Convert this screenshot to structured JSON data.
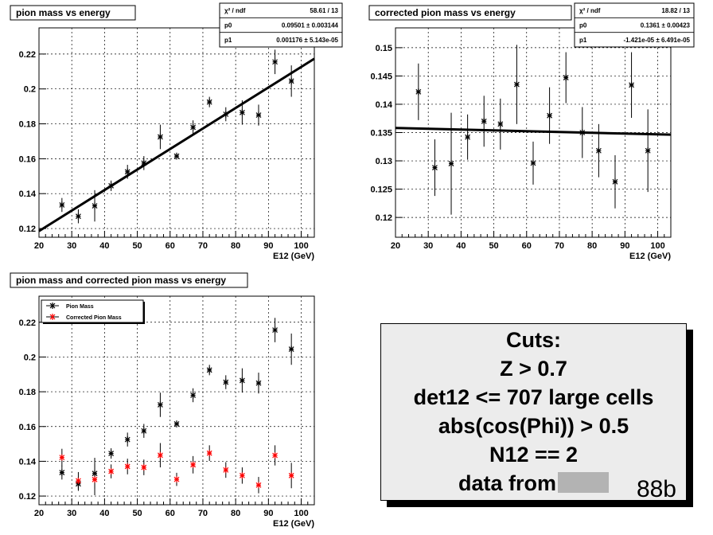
{
  "chart_data": [
    {
      "type": "scatter",
      "title": "pion mass vs energy",
      "xlabel": "E12 (GeV)",
      "ylabel": "",
      "xlim": [
        20,
        104
      ],
      "ylim": [
        0.115,
        0.235
      ],
      "xticks": [
        "20",
        "30",
        "40",
        "50",
        "60",
        "70",
        "80",
        "90",
        "100"
      ],
      "yticks": [
        "0.12",
        "0.14",
        "0.16",
        "0.18",
        "0.2",
        "0.22"
      ],
      "grid": true,
      "series": [
        {
          "color": "#000000",
          "points": [
            [
              27,
              0.1335,
              0.004
            ],
            [
              32,
              0.127,
              0.004
            ],
            [
              37,
              0.133,
              0.009
            ],
            [
              42,
              0.1445,
              0.003
            ],
            [
              47,
              0.1525,
              0.004
            ],
            [
              52,
              0.1575,
              0.004
            ],
            [
              57,
              0.1725,
              0.007
            ],
            [
              62,
              0.1615,
              0.002
            ],
            [
              67,
              0.178,
              0.004
            ],
            [
              72,
              0.1925,
              0.003
            ],
            [
              77,
              0.1855,
              0.004
            ],
            [
              82,
              0.1865,
              0.007
            ],
            [
              87,
              0.185,
              0.006
            ],
            [
              92,
              0.2155,
              0.007
            ],
            [
              97,
              0.2045,
              0.009
            ]
          ]
        }
      ],
      "fit": {
        "p0": 0.09501,
        "p1": 0.001176,
        "from": 20,
        "to": 104
      },
      "stats": {
        "header": "χ² / ndf",
        "header_value": "58.61 / 13",
        "p0_label": "p0",
        "p0_value": "0.09501 ± 0.003144",
        "p1_label": "p1",
        "p1_value": "0.001176 ± 5.143e-05"
      }
    },
    {
      "type": "scatter",
      "title": "corrected pion mass vs energy",
      "xlabel": "E12 (GeV)",
      "ylabel": "",
      "xlim": [
        20,
        104
      ],
      "ylim": [
        0.1165,
        0.1535
      ],
      "xticks": [
        "20",
        "30",
        "40",
        "50",
        "60",
        "70",
        "80",
        "90",
        "100"
      ],
      "yticks": [
        "0.12",
        "0.125",
        "0.13",
        "0.135",
        "0.14",
        "0.145",
        "0.15"
      ],
      "grid": true,
      "series": [
        {
          "color": "#000000",
          "points": [
            [
              27,
              0.1422,
              0.005
            ],
            [
              32,
              0.1288,
              0.005
            ],
            [
              37,
              0.1295,
              0.009
            ],
            [
              42,
              0.1342,
              0.004
            ],
            [
              47,
              0.137,
              0.0045
            ],
            [
              52,
              0.1365,
              0.0045
            ],
            [
              57,
              0.1435,
              0.007
            ],
            [
              62,
              0.1296,
              0.0038
            ],
            [
              67,
              0.138,
              0.005
            ],
            [
              72,
              0.1447,
              0.0045
            ],
            [
              77,
              0.135,
              0.0045
            ],
            [
              82,
              0.1318,
              0.0047
            ],
            [
              87,
              0.1263,
              0.0047
            ],
            [
              92,
              0.1434,
              0.0058
            ],
            [
              97,
              0.1318,
              0.0073
            ]
          ]
        }
      ],
      "fit": {
        "p0": 0.1361,
        "p1": -1.421e-05,
        "from": 20,
        "to": 104
      },
      "stats": {
        "header": "χ² / ndf",
        "header_value": "18.82 / 13",
        "p0_label": "p0",
        "p0_value": "0.1361 ± 0.00423",
        "p1_label": "p1",
        "p1_value": "-1.421e-05 ± 6.491e-05"
      }
    },
    {
      "type": "scatter",
      "title": "pion mass and corrected pion mass vs energy",
      "xlabel": "E12 (GeV)",
      "ylabel": "",
      "xlim": [
        20,
        104
      ],
      "ylim": [
        0.115,
        0.235
      ],
      "xticks": [
        "20",
        "30",
        "40",
        "50",
        "60",
        "70",
        "80",
        "90",
        "100"
      ],
      "yticks": [
        "0.12",
        "0.14",
        "0.16",
        "0.18",
        "0.2",
        "0.22"
      ],
      "grid": true,
      "legend": "top-left",
      "series": [
        {
          "name": "Pion Mass",
          "color": "#000000",
          "points": [
            [
              27,
              0.1335,
              0.004
            ],
            [
              32,
              0.127,
              0.004
            ],
            [
              37,
              0.133,
              0.009
            ],
            [
              42,
              0.1445,
              0.003
            ],
            [
              47,
              0.1525,
              0.004
            ],
            [
              52,
              0.1575,
              0.004
            ],
            [
              57,
              0.1725,
              0.007
            ],
            [
              62,
              0.1615,
              0.002
            ],
            [
              67,
              0.178,
              0.004
            ],
            [
              72,
              0.1925,
              0.003
            ],
            [
              77,
              0.1855,
              0.004
            ],
            [
              82,
              0.1865,
              0.007
            ],
            [
              87,
              0.185,
              0.006
            ],
            [
              92,
              0.2155,
              0.007
            ],
            [
              97,
              0.2045,
              0.009
            ]
          ]
        },
        {
          "name": "Corrected Pion Mass",
          "color": "#ff0000",
          "points": [
            [
              27,
              0.1422,
              0.005
            ],
            [
              32,
              0.1288,
              0.005
            ],
            [
              37,
              0.1295,
              0.009
            ],
            [
              42,
              0.1342,
              0.004
            ],
            [
              47,
              0.137,
              0.0045
            ],
            [
              52,
              0.1365,
              0.0045
            ],
            [
              57,
              0.1435,
              0.007
            ],
            [
              62,
              0.1296,
              0.0038
            ],
            [
              67,
              0.138,
              0.005
            ],
            [
              72,
              0.1447,
              0.0045
            ],
            [
              77,
              0.135,
              0.0045
            ],
            [
              82,
              0.1318,
              0.0047
            ],
            [
              87,
              0.1263,
              0.0047
            ],
            [
              92,
              0.1434,
              0.0058
            ],
            [
              97,
              0.1318,
              0.0073
            ]
          ]
        }
      ]
    }
  ],
  "cuts": {
    "line1": "Cuts:",
    "line2": "Z > 0.7",
    "line3": "det12 <= 707 large cells",
    "line4": "abs(cos(Phi)) > 0.5",
    "line5": "N12 == 2",
    "line6_prefix": "data from",
    "run": "88b"
  }
}
